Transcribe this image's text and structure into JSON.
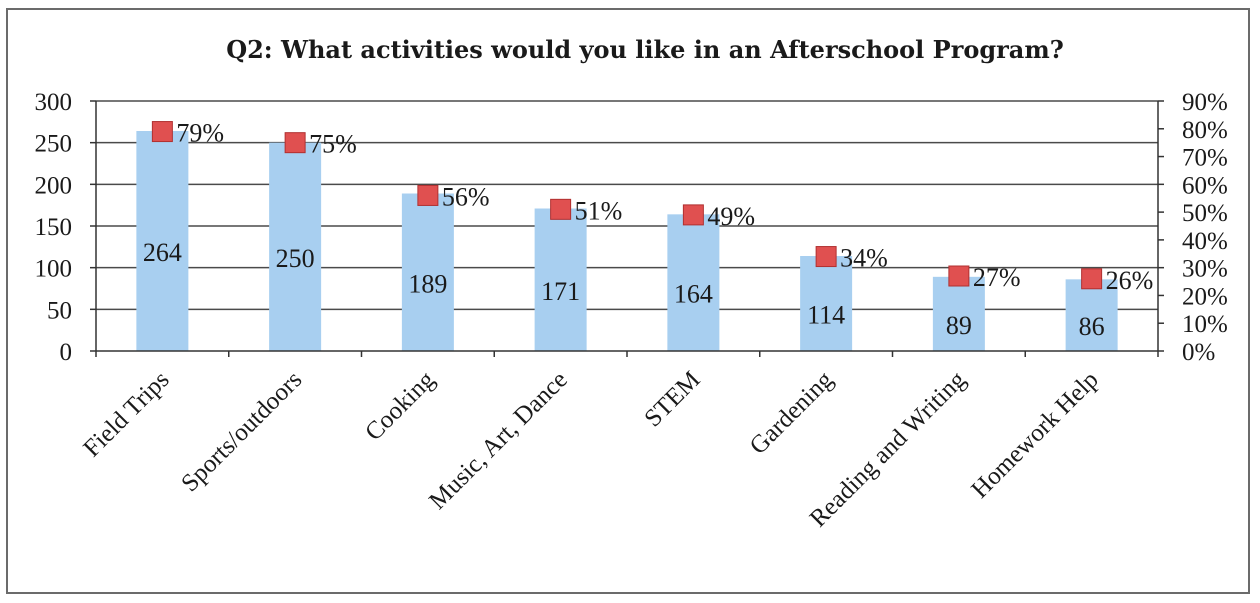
{
  "chart_data": {
    "type": "bar",
    "title": "Q2: What activities would you like in an Afterschool Program?",
    "categories": [
      "Field Trips",
      "Sports/outdoors",
      "Cooking",
      "Music, Art, Dance",
      "STEM",
      "Gardening",
      "Reading and Writing",
      "Homework Help"
    ],
    "series": [
      {
        "values": [
          264,
          250,
          189,
          171,
          164,
          114,
          89,
          86
        ],
        "axis": "left",
        "color": "#a8cff0",
        "labels": [
          "264",
          "250",
          "189",
          "171",
          "164",
          "114",
          "89",
          "86"
        ]
      },
      {
        "values": [
          0.79,
          0.75,
          0.56,
          0.51,
          0.49,
          0.34,
          0.27,
          0.26
        ],
        "axis": "right",
        "marker": "square",
        "color": "#e05050",
        "labels": [
          "79%",
          "75%",
          "56%",
          "51%",
          "49%",
          "34%",
          "27%",
          "26%"
        ]
      }
    ],
    "ylim": [
      0,
      300
    ],
    "y_ticks": [
      "0",
      "50",
      "100",
      "150",
      "200",
      "250",
      "300"
    ],
    "y2lim": [
      0,
      0.9
    ],
    "y2_ticks": [
      "0%",
      "10%",
      "20%",
      "30%",
      "40%",
      "50%",
      "60%",
      "70%",
      "80%",
      "90%"
    ],
    "grid": true,
    "legend": "none"
  }
}
